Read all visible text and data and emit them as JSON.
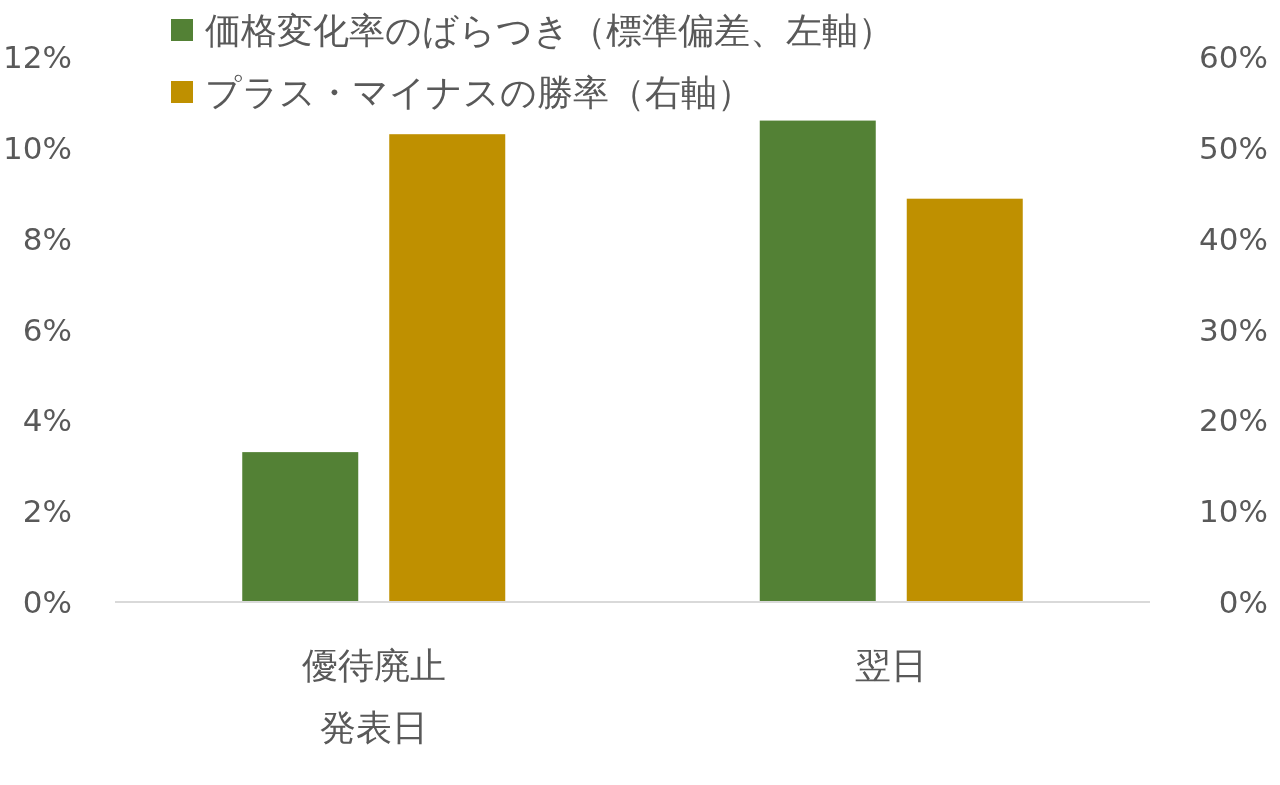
{
  "chart_data": {
    "type": "bar",
    "categories": [
      "優待廃止発表日",
      "翌日"
    ],
    "series": [
      {
        "name": "価格変化率のばらつき（標準偏差、左軸）",
        "color": "#538135",
        "values": [
          3.3,
          10.6
        ]
      },
      {
        "name": "プラス・マイナスの勝率（右軸）",
        "color": "#bf9000",
        "values": [
          51.5,
          44.4
        ],
        "axis": "y2"
      }
    ],
    "ylim": [
      0,
      12
    ],
    "yticks": [
      {
        "value": 0,
        "label": "0%"
      },
      {
        "value": 2,
        "label": "2%"
      },
      {
        "value": 4,
        "label": "4%"
      },
      {
        "value": 6,
        "label": "6%"
      },
      {
        "value": 8,
        "label": "8%"
      },
      {
        "value": 10,
        "label": "10%"
      },
      {
        "value": 12,
        "label": "12%"
      }
    ],
    "y2lim": [
      0,
      60
    ],
    "y2ticks": [
      {
        "value": 0,
        "label": "0%"
      },
      {
        "value": 10,
        "label": "10%"
      },
      {
        "value": 20,
        "label": "20%"
      },
      {
        "value": 30,
        "label": "30%"
      },
      {
        "value": 40,
        "label": "40%"
      },
      {
        "value": 50,
        "label": "50%"
      },
      {
        "value": 60,
        "label": "60%"
      }
    ],
    "legend": "top",
    "grid": false
  }
}
